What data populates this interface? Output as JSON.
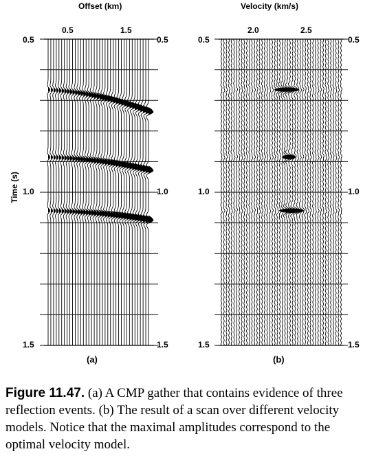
{
  "panel_a": {
    "title": "Offset (km)",
    "x_ticks": [
      "0.5",
      "1.5"
    ],
    "y_ticks_left": [
      "0.5",
      "1.0",
      "1.5"
    ],
    "y_ticks_right": [
      "0.5",
      "1.0",
      "1.5"
    ],
    "y_label": "Time (s)",
    "label": "(a)",
    "events_t0_s": [
      0.665,
      0.885,
      1.06
    ]
  },
  "panel_b": {
    "title": "Velocity (km/s)",
    "x_ticks": [
      "2.0",
      "2.5"
    ],
    "y_ticks_right": [
      "0.5",
      "1.0",
      "1.5"
    ],
    "y_ticks_left": [
      "0.5",
      "1.0",
      "1.5"
    ],
    "label": "(b)",
    "peaks_t_s": [
      0.665,
      0.885,
      1.06
    ]
  },
  "caption": {
    "label": "Figure 11.47.",
    "text": " (a) A CMP gather that contains evidence of three reflection events. (b) The result of a scan over different velocity models. Notice that the maximal amplitudes correspond to the optimal velocity model."
  }
}
